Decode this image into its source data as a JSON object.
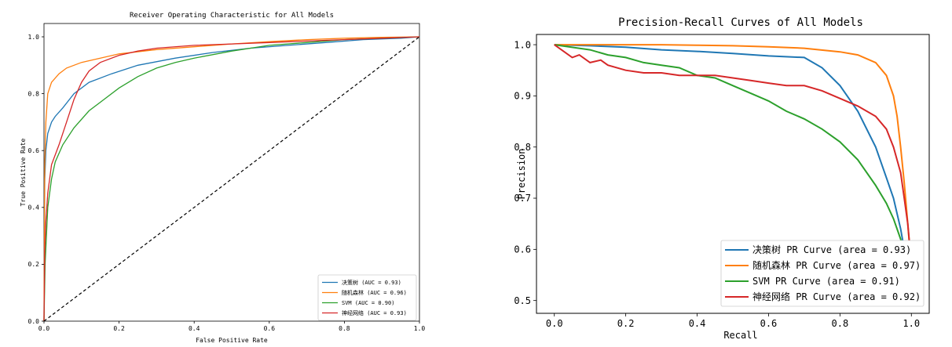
{
  "chart_data": [
    {
      "type": "line",
      "title": "Receiver Operating Characteristic for All Models",
      "xlabel": "False Positive Rate",
      "ylabel": "True Positive Rate",
      "xlim": [
        0,
        1
      ],
      "ylim": [
        0,
        1
      ],
      "xticks": [
        "0.0",
        "0.2",
        "0.4",
        "0.6",
        "0.8",
        "1.0"
      ],
      "yticks": [
        "0.0",
        "0.2",
        "0.4",
        "0.6",
        "0.8",
        "1.0"
      ],
      "grid": false,
      "legend_position": "lower-right",
      "series": [
        {
          "name": "决策树 (AUC = 0.93)",
          "color": "#1f77b4",
          "x": [
            0,
            0.002,
            0.005,
            0.01,
            0.02,
            0.03,
            0.05,
            0.08,
            0.12,
            0.18,
            0.25,
            0.35,
            0.45,
            0.55,
            0.65,
            0.75,
            0.85,
            0.95,
            1.0
          ],
          "y": [
            0,
            0.5,
            0.6,
            0.66,
            0.7,
            0.72,
            0.75,
            0.8,
            0.84,
            0.87,
            0.9,
            0.925,
            0.945,
            0.96,
            0.97,
            0.98,
            0.99,
            0.995,
            1.0
          ]
        },
        {
          "name": "随机森林 (AUC = 0.96)",
          "color": "#ff7f0e",
          "x": [
            0,
            0.002,
            0.005,
            0.01,
            0.02,
            0.04,
            0.06,
            0.1,
            0.15,
            0.2,
            0.3,
            0.4,
            0.5,
            0.6,
            0.7,
            0.8,
            0.9,
            1.0
          ],
          "y": [
            0,
            0.55,
            0.7,
            0.8,
            0.84,
            0.87,
            0.89,
            0.91,
            0.925,
            0.94,
            0.955,
            0.965,
            0.975,
            0.983,
            0.99,
            0.995,
            0.998,
            1.0
          ]
        },
        {
          "name": "SVM (AUC = 0.90)",
          "color": "#2ca02c",
          "x": [
            0,
            0.003,
            0.01,
            0.02,
            0.03,
            0.05,
            0.08,
            0.12,
            0.16,
            0.2,
            0.25,
            0.3,
            0.35,
            0.4,
            0.5,
            0.6,
            0.7,
            0.8,
            0.9,
            1.0
          ],
          "y": [
            0,
            0.2,
            0.4,
            0.5,
            0.56,
            0.62,
            0.68,
            0.74,
            0.78,
            0.82,
            0.86,
            0.89,
            0.91,
            0.925,
            0.95,
            0.97,
            0.98,
            0.99,
            0.995,
            1.0
          ]
        },
        {
          "name": "神经网络 (AUC = 0.93)",
          "color": "#d62728",
          "x": [
            0,
            0.002,
            0.005,
            0.01,
            0.02,
            0.04,
            0.06,
            0.08,
            0.1,
            0.12,
            0.15,
            0.2,
            0.25,
            0.3,
            0.4,
            0.5,
            0.6,
            0.7,
            0.8,
            0.9,
            1.0
          ],
          "y": [
            0,
            0.25,
            0.35,
            0.45,
            0.55,
            0.62,
            0.7,
            0.78,
            0.84,
            0.88,
            0.91,
            0.935,
            0.95,
            0.96,
            0.97,
            0.975,
            0.98,
            0.985,
            0.99,
            0.995,
            1.0
          ]
        },
        {
          "name": "",
          "color": "#000000",
          "dashed": true,
          "x": [
            0,
            1
          ],
          "y": [
            0,
            1
          ]
        }
      ]
    },
    {
      "type": "line",
      "title": "Precision-Recall Curves of All Models",
      "xlabel": "Recall",
      "ylabel": "Precision",
      "xlim": [
        -0.05,
        1.05
      ],
      "ylim": [
        0.475,
        1.02
      ],
      "xticks": [
        "0.0",
        "0.2",
        "0.4",
        "0.6",
        "0.8",
        "1.0"
      ],
      "yticks": [
        "0.5",
        "0.6",
        "0.7",
        "0.8",
        "0.9",
        "1.0"
      ],
      "grid": false,
      "legend_position": "lower-right",
      "series": [
        {
          "name": "决策树 PR Curve (area = 0.93)",
          "color": "#1f77b4",
          "x": [
            0,
            0.1,
            0.2,
            0.3,
            0.4,
            0.5,
            0.6,
            0.7,
            0.75,
            0.8,
            0.85,
            0.9,
            0.93,
            0.95,
            0.97,
            0.98,
            0.99,
            1.0
          ],
          "y": [
            1.0,
            0.998,
            0.995,
            0.99,
            0.987,
            0.983,
            0.978,
            0.975,
            0.955,
            0.92,
            0.87,
            0.8,
            0.74,
            0.7,
            0.64,
            0.6,
            0.57,
            0.55
          ]
        },
        {
          "name": "随机森林 PR Curve (area = 0.97)",
          "color": "#ff7f0e",
          "x": [
            0,
            0.1,
            0.2,
            0.3,
            0.4,
            0.5,
            0.6,
            0.7,
            0.8,
            0.85,
            0.9,
            0.93,
            0.95,
            0.96,
            0.97,
            0.98,
            0.99,
            1.0
          ],
          "y": [
            1.0,
            1.0,
            1.0,
            1.0,
            0.999,
            0.998,
            0.996,
            0.993,
            0.986,
            0.98,
            0.965,
            0.94,
            0.9,
            0.86,
            0.8,
            0.73,
            0.65,
            0.56
          ]
        },
        {
          "name": "SVM PR Curve (area = 0.91)",
          "color": "#2ca02c",
          "x": [
            0,
            0.1,
            0.15,
            0.2,
            0.25,
            0.3,
            0.35,
            0.4,
            0.45,
            0.5,
            0.55,
            0.6,
            0.65,
            0.7,
            0.75,
            0.8,
            0.85,
            0.9,
            0.93,
            0.95,
            0.97,
            0.99
          ],
          "y": [
            1.0,
            0.99,
            0.98,
            0.975,
            0.965,
            0.96,
            0.955,
            0.94,
            0.935,
            0.92,
            0.905,
            0.89,
            0.87,
            0.855,
            0.835,
            0.81,
            0.775,
            0.725,
            0.69,
            0.66,
            0.62,
            0.57
          ]
        },
        {
          "name": "神经网络 PR Curve (area = 0.92)",
          "color": "#d62728",
          "x": [
            0,
            0.02,
            0.05,
            0.07,
            0.1,
            0.13,
            0.15,
            0.2,
            0.25,
            0.3,
            0.35,
            0.4,
            0.45,
            0.5,
            0.55,
            0.6,
            0.65,
            0.7,
            0.75,
            0.8,
            0.85,
            0.9,
            0.93,
            0.95,
            0.97,
            0.98,
            0.99,
            1.0
          ],
          "y": [
            1.0,
            0.99,
            0.975,
            0.98,
            0.965,
            0.97,
            0.96,
            0.95,
            0.945,
            0.945,
            0.94,
            0.94,
            0.94,
            0.935,
            0.93,
            0.925,
            0.92,
            0.92,
            0.91,
            0.895,
            0.88,
            0.86,
            0.835,
            0.8,
            0.75,
            0.7,
            0.65,
            0.57
          ]
        }
      ]
    }
  ]
}
